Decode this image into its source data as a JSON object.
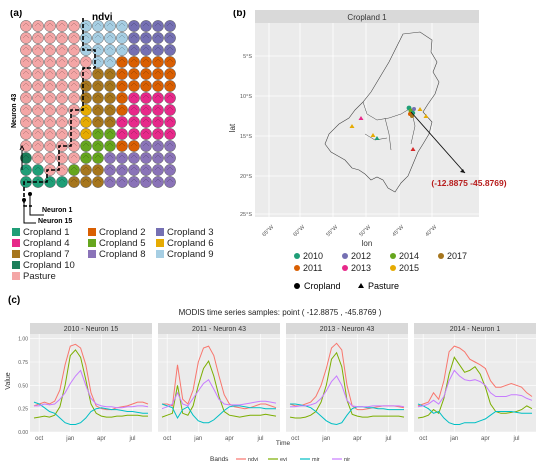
{
  "panel_labels": {
    "a": "(a)",
    "b": "(b)",
    "c": "(c)"
  },
  "som": {
    "title": "ndvi",
    "neuron_labels": {
      "n43": "Neuron 43",
      "n1": "Neuron 1",
      "n15": "Neuron 15"
    },
    "legend": [
      {
        "label": "Cropland 1",
        "color": "#1f9e77"
      },
      {
        "label": "Cropland 2",
        "color": "#d95f02"
      },
      {
        "label": "Cropland 3",
        "color": "#7570b3"
      },
      {
        "label": "Cropland 4",
        "color": "#e7298a"
      },
      {
        "label": "Cropland 5",
        "color": "#66a61e"
      },
      {
        "label": "Cropland 6",
        "color": "#e6ab02"
      },
      {
        "label": "Cropland 7",
        "color": "#a6761d"
      },
      {
        "label": "Cropland 8",
        "color": "#8a73b8"
      },
      {
        "label": "Cropland 9",
        "color": "#a6cee3"
      },
      {
        "label": "Cropland 10",
        "color": "#1b7f5a"
      },
      {
        "label": "Pasture",
        "color": "#f4a6a6"
      }
    ]
  },
  "map": {
    "strip_title": "Cropland 1",
    "ylabel": "lat",
    "xlabel": "lon",
    "yticks": [
      "5°S",
      "10°S",
      "15°S",
      "20°S",
      "25°S"
    ],
    "xticks": [
      "65°W",
      "60°W",
      "55°W",
      "50°W",
      "45°W",
      "40°W"
    ],
    "annotation": "(-12.8875 -45.8769)",
    "year_legend": [
      {
        "label": "2010",
        "color": "#1f9e77"
      },
      {
        "label": "2011",
        "color": "#d95f02"
      },
      {
        "label": "2012",
        "color": "#7570b3"
      },
      {
        "label": "2013",
        "color": "#e7298a"
      },
      {
        "label": "2014",
        "color": "#66a61e"
      },
      {
        "label": "2015",
        "color": "#e6ab02"
      },
      {
        "label": "2017",
        "color": "#a6761d"
      }
    ],
    "shape_legend": [
      {
        "label": "Cropland",
        "shape": "circle"
      },
      {
        "label": "Pasture",
        "shape": "triangle"
      }
    ]
  },
  "timeseries": {
    "title": "MODIS time series samples: point ( -12.8875 , -45.8769 )",
    "ylabel": "Value",
    "xlabel": "Time",
    "legend_title": "Bands",
    "yticks": [
      "0.00",
      "0.25",
      "0.50",
      "0.75",
      "1.00"
    ],
    "xticks": [
      "oct",
      "jan",
      "apr",
      "jul"
    ],
    "bands": [
      {
        "name": "ndvi",
        "color": "#f8766d"
      },
      {
        "name": "evi",
        "color": "#7cae00"
      },
      {
        "name": "mir",
        "color": "#00bfc4"
      },
      {
        "name": "nir",
        "color": "#c77cff"
      }
    ],
    "facets": [
      "2010 - Neuron 15",
      "2011 - Neuron 43",
      "2013 - Neuron 43",
      "2014 - Neuron 1"
    ]
  },
  "chart_data": [
    {
      "type": "line",
      "title": "2010 - Neuron 15",
      "x": [
        0,
        1,
        2,
        3,
        4,
        5,
        6,
        7,
        8,
        9,
        10,
        11,
        12,
        13,
        14,
        15,
        16,
        17,
        18,
        19,
        20,
        21,
        22
      ],
      "ylim": [
        0,
        1.05
      ],
      "series": [
        {
          "name": "ndvi",
          "values": [
            0.28,
            0.3,
            0.32,
            0.3,
            0.33,
            0.45,
            0.72,
            0.92,
            0.94,
            0.9,
            0.72,
            0.42,
            0.28,
            0.25,
            0.24,
            0.24,
            0.26,
            0.27,
            0.28,
            0.3,
            0.32,
            0.32,
            0.3
          ]
        },
        {
          "name": "evi",
          "values": [
            0.15,
            0.16,
            0.17,
            0.16,
            0.18,
            0.27,
            0.5,
            0.82,
            0.88,
            0.8,
            0.56,
            0.3,
            0.2,
            0.17,
            0.16,
            0.16,
            0.17,
            0.17,
            0.18,
            0.18,
            0.18,
            0.17,
            0.17
          ]
        },
        {
          "name": "mir",
          "values": [
            0.32,
            0.3,
            0.26,
            0.22,
            0.2,
            0.15,
            0.1,
            0.08,
            0.08,
            0.1,
            0.15,
            0.22,
            0.25,
            0.26,
            0.25,
            0.24,
            0.24,
            0.23,
            0.22,
            0.22,
            0.21,
            0.2,
            0.2
          ]
        },
        {
          "name": "nir",
          "values": [
            0.28,
            0.28,
            0.3,
            0.29,
            0.3,
            0.35,
            0.42,
            0.52,
            0.6,
            0.66,
            0.5,
            0.36,
            0.3,
            0.28,
            0.27,
            0.27,
            0.26,
            0.26,
            0.27,
            0.27,
            0.28,
            0.28,
            0.27
          ]
        }
      ]
    },
    {
      "type": "line",
      "title": "2011 - Neuron 43",
      "x": [
        0,
        1,
        2,
        3,
        4,
        5,
        6,
        7,
        8,
        9,
        10,
        11,
        12,
        13,
        14,
        15,
        16,
        17,
        18,
        19,
        20,
        21,
        22
      ],
      "ylim": [
        0,
        1.05
      ],
      "series": [
        {
          "name": "ndvi",
          "values": [
            0.3,
            0.3,
            0.28,
            0.72,
            0.35,
            0.3,
            0.45,
            0.75,
            0.9,
            0.92,
            0.82,
            0.6,
            0.4,
            0.3,
            0.27,
            0.26,
            0.25,
            0.26,
            0.28,
            0.3,
            0.3,
            0.28,
            0.26
          ]
        },
        {
          "name": "evi",
          "values": [
            0.16,
            0.18,
            0.2,
            0.5,
            0.2,
            0.18,
            0.28,
            0.5,
            0.68,
            0.76,
            0.6,
            0.38,
            0.22,
            0.18,
            0.17,
            0.16,
            0.17,
            0.18,
            0.18,
            0.18,
            0.19,
            0.18,
            0.17
          ]
        },
        {
          "name": "mir",
          "values": [
            0.3,
            0.28,
            0.26,
            0.15,
            0.24,
            0.27,
            0.18,
            0.12,
            0.1,
            0.1,
            0.13,
            0.18,
            0.23,
            0.27,
            0.28,
            0.28,
            0.27,
            0.26,
            0.26,
            0.26,
            0.25,
            0.25,
            0.25
          ]
        },
        {
          "name": "nir",
          "values": [
            0.25,
            0.27,
            0.3,
            0.42,
            0.3,
            0.28,
            0.36,
            0.44,
            0.52,
            0.56,
            0.46,
            0.35,
            0.3,
            0.29,
            0.29,
            0.29,
            0.3,
            0.31,
            0.32,
            0.33,
            0.33,
            0.32,
            0.31
          ]
        }
      ]
    },
    {
      "type": "line",
      "title": "2013 - Neuron 43",
      "x": [
        0,
        1,
        2,
        3,
        4,
        5,
        6,
        7,
        8,
        9,
        10,
        11,
        12,
        13,
        14,
        15,
        16,
        17,
        18,
        19,
        20,
        21,
        22
      ],
      "ylim": [
        0,
        1.05
      ],
      "series": [
        {
          "name": "ndvi",
          "values": [
            0.3,
            0.28,
            0.28,
            0.3,
            0.32,
            0.38,
            0.5,
            0.68,
            0.9,
            0.95,
            0.88,
            0.5,
            0.28,
            0.24,
            0.24,
            0.25,
            0.26,
            0.27,
            0.28,
            0.28,
            0.28,
            0.27,
            0.26
          ]
        },
        {
          "name": "evi",
          "values": [
            0.16,
            0.15,
            0.15,
            0.16,
            0.18,
            0.22,
            0.32,
            0.5,
            0.78,
            0.85,
            0.7,
            0.34,
            0.19,
            0.17,
            0.16,
            0.16,
            0.17,
            0.17,
            0.17,
            0.17,
            0.17,
            0.17,
            0.16
          ]
        },
        {
          "name": "mir",
          "values": [
            0.3,
            0.3,
            0.29,
            0.28,
            0.26,
            0.22,
            0.17,
            0.12,
            0.09,
            0.08,
            0.1,
            0.18,
            0.25,
            0.27,
            0.27,
            0.26,
            0.26,
            0.25,
            0.25,
            0.24,
            0.24,
            0.24,
            0.24
          ]
        },
        {
          "name": "nir",
          "values": [
            0.27,
            0.27,
            0.28,
            0.28,
            0.29,
            0.31,
            0.36,
            0.44,
            0.54,
            0.6,
            0.5,
            0.34,
            0.28,
            0.27,
            0.27,
            0.27,
            0.28,
            0.28,
            0.28,
            0.28,
            0.28,
            0.28,
            0.27
          ]
        }
      ]
    },
    {
      "type": "line",
      "title": "2014 - Neuron 1",
      "x": [
        0,
        1,
        2,
        3,
        4,
        5,
        6,
        7,
        8,
        9,
        10,
        11,
        12,
        13,
        14,
        15,
        16,
        17,
        18,
        19,
        20,
        21,
        22
      ],
      "ylim": [
        0,
        1.05
      ],
      "series": [
        {
          "name": "ndvi",
          "values": [
            0.28,
            0.3,
            0.32,
            0.42,
            0.35,
            0.55,
            0.86,
            0.92,
            0.9,
            0.86,
            0.78,
            0.75,
            0.72,
            0.68,
            0.55,
            0.48,
            0.48,
            0.5,
            0.52,
            0.5,
            0.48,
            0.42,
            0.38
          ]
        },
        {
          "name": "evi",
          "values": [
            0.15,
            0.16,
            0.18,
            0.24,
            0.2,
            0.36,
            0.62,
            0.8,
            0.72,
            0.64,
            0.66,
            0.7,
            0.62,
            0.48,
            0.3,
            0.22,
            0.2,
            0.2,
            0.21,
            0.22,
            0.24,
            0.28,
            0.25
          ]
        },
        {
          "name": "mir",
          "values": [
            0.3,
            0.28,
            0.25,
            0.2,
            0.22,
            0.15,
            0.1,
            0.08,
            0.08,
            0.1,
            0.1,
            0.1,
            0.12,
            0.14,
            0.18,
            0.22,
            0.22,
            0.22,
            0.22,
            0.21,
            0.2,
            0.2,
            0.2
          ]
        },
        {
          "name": "nir",
          "values": [
            0.27,
            0.28,
            0.3,
            0.34,
            0.3,
            0.38,
            0.55,
            0.66,
            0.6,
            0.56,
            0.55,
            0.56,
            0.54,
            0.5,
            0.42,
            0.38,
            0.38,
            0.38,
            0.4,
            0.4,
            0.39,
            0.36,
            0.34
          ]
        }
      ]
    }
  ]
}
